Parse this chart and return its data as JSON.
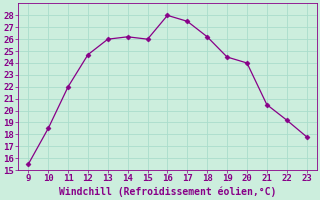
{
  "x": [
    9,
    10,
    11,
    12,
    13,
    14,
    15,
    16,
    17,
    18,
    19,
    20,
    21,
    22,
    23
  ],
  "y": [
    15.5,
    18.5,
    22.0,
    24.7,
    26.0,
    26.2,
    26.0,
    28.0,
    27.5,
    26.2,
    24.5,
    24.0,
    20.5,
    19.2,
    17.8
  ],
  "line_color": "#880088",
  "marker": "D",
  "marker_size": 2.5,
  "background_color": "#cceedd",
  "grid_color": "#aaddcc",
  "xlabel": "Windchill (Refroidissement éolien,°C)",
  "xlabel_color": "#880088",
  "xlabel_fontsize": 7,
  "tick_color": "#880088",
  "tick_fontsize": 6.5,
  "xlim": [
    8.5,
    23.5
  ],
  "ylim": [
    15,
    29
  ],
  "yticks": [
    15,
    16,
    17,
    18,
    19,
    20,
    21,
    22,
    23,
    24,
    25,
    26,
    27,
    28
  ],
  "xticks": [
    9,
    10,
    11,
    12,
    13,
    14,
    15,
    16,
    17,
    18,
    19,
    20,
    21,
    22,
    23
  ]
}
